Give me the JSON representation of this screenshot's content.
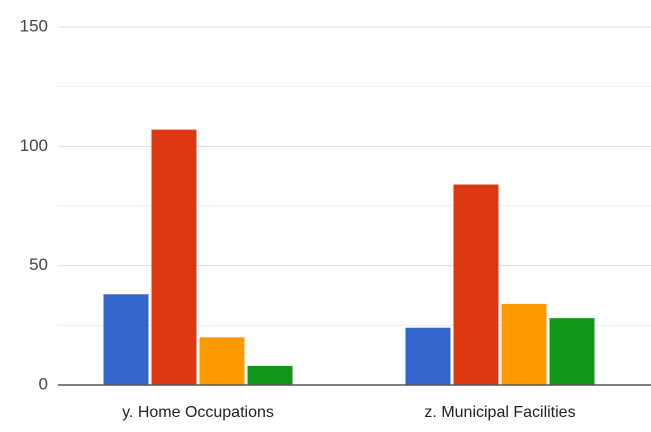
{
  "chart_data": {
    "type": "bar",
    "categories": [
      "y. Home Occupations",
      "z. Municipal Facilities"
    ],
    "series": [
      {
        "color": "#3366cc",
        "values": [
          38,
          24
        ]
      },
      {
        "color": "#dc3912",
        "values": [
          107,
          84
        ]
      },
      {
        "color": "#ff9900",
        "values": [
          20,
          34
        ]
      },
      {
        "color": "#109618",
        "values": [
          8,
          28
        ]
      }
    ],
    "ylim": [
      0,
      150
    ],
    "yticks": [
      0,
      50,
      100,
      150
    ],
    "minor_gridlines": [
      25,
      75,
      125
    ],
    "grid": true
  }
}
